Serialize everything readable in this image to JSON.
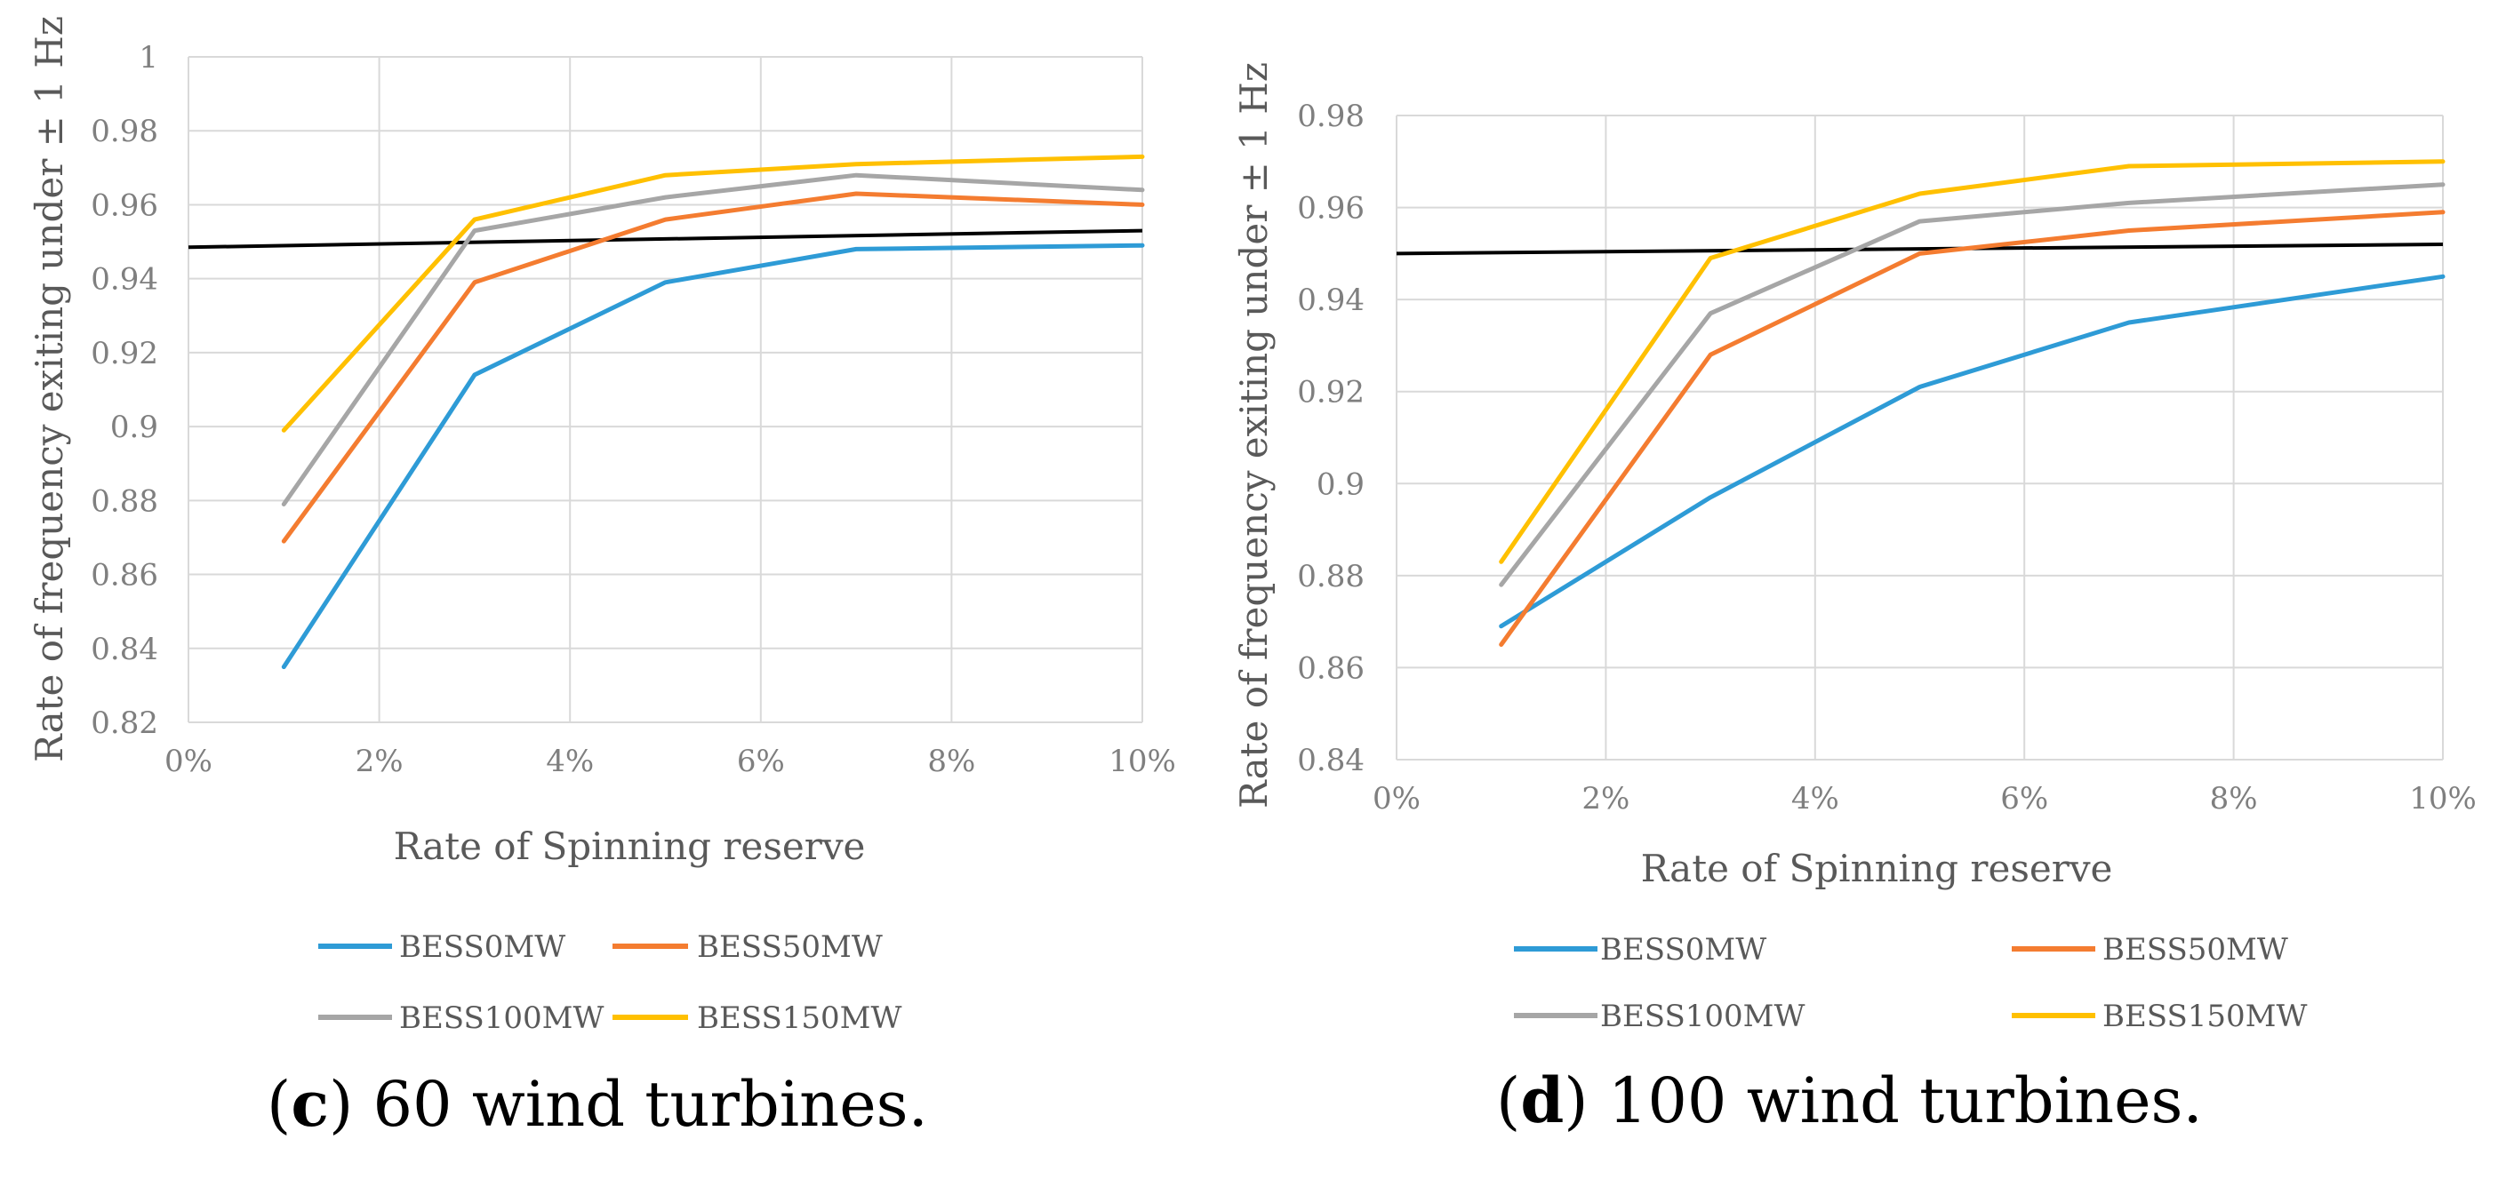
{
  "chart_data": [
    {
      "type": "line",
      "panel_id": "c",
      "caption": {
        "open": "(",
        "letter": "c",
        "close": ")",
        "text": " 60 wind turbines."
      },
      "title": "",
      "xlabel": "Rate of Spinning  reserve",
      "ylabel": "Rate of frequency  exiting under ± 1 Hz",
      "xlim": [
        0,
        10
      ],
      "ylim": [
        0.82,
        1.0
      ],
      "x_ticks": [
        0,
        2,
        4,
        6,
        8,
        10
      ],
      "x_tick_labels": [
        "0%",
        "2%",
        "4%",
        "6%",
        "8%",
        "10%"
      ],
      "y_ticks": [
        0.82,
        0.84,
        0.86,
        0.88,
        0.9,
        0.92,
        0.94,
        0.96,
        0.98,
        1.0
      ],
      "y_tick_labels": [
        "0.82",
        "0.84",
        "0.86",
        "0.88",
        "0.9",
        "0.92",
        "0.94",
        "0.96",
        "0.98",
        "1"
      ],
      "grid": true,
      "legend_position": "bottom",
      "x": [
        1,
        3,
        5,
        7,
        10
      ],
      "series": [
        {
          "name": "BESS0MW",
          "color": "#2e9bd6",
          "values": [
            0.835,
            0.914,
            0.939,
            0.948,
            0.949
          ]
        },
        {
          "name": "BESS50MW",
          "color": "#f47c30",
          "values": [
            0.869,
            0.939,
            0.956,
            0.963,
            0.96
          ]
        },
        {
          "name": "BESS100MW",
          "color": "#a6a6a6",
          "values": [
            0.879,
            0.953,
            0.962,
            0.968,
            0.964
          ]
        },
        {
          "name": "BESS150MW",
          "color": "#ffc000",
          "values": [
            0.899,
            0.956,
            0.968,
            0.971,
            0.973
          ]
        }
      ],
      "reference_line": {
        "color": "#000000",
        "x": [
          0,
          10
        ],
        "values": [
          0.9485,
          0.953
        ]
      }
    },
    {
      "type": "line",
      "panel_id": "d",
      "caption": {
        "open": "(",
        "letter": "d",
        "close": ")",
        "text": " 100 wind turbines."
      },
      "title": "",
      "xlabel": "Rate of Spinning  reserve",
      "ylabel": "Rate of frequency  exiting under ± 1 Hz",
      "xlim": [
        0,
        10
      ],
      "ylim": [
        0.84,
        0.98
      ],
      "x_ticks": [
        0,
        2,
        4,
        6,
        8,
        10
      ],
      "x_tick_labels": [
        "0%",
        "2%",
        "4%",
        "6%",
        "8%",
        "10%"
      ],
      "y_ticks": [
        0.84,
        0.86,
        0.88,
        0.9,
        0.92,
        0.94,
        0.96,
        0.98
      ],
      "y_tick_labels": [
        "0.84",
        "0.86",
        "0.88",
        "0.9",
        "0.92",
        "0.94",
        "0.96",
        "0.98"
      ],
      "grid": true,
      "legend_position": "bottom",
      "x": [
        1,
        3,
        5,
        7,
        10
      ],
      "series": [
        {
          "name": "BESS0MW",
          "color": "#2e9bd6",
          "values": [
            0.869,
            0.897,
            0.921,
            0.935,
            0.945
          ]
        },
        {
          "name": "BESS50MW",
          "color": "#f47c30",
          "values": [
            0.865,
            0.928,
            0.95,
            0.955,
            0.959
          ]
        },
        {
          "name": "BESS100MW",
          "color": "#a6a6a6",
          "values": [
            0.878,
            0.937,
            0.957,
            0.961,
            0.965
          ]
        },
        {
          "name": "BESS150MW",
          "color": "#ffc000",
          "values": [
            0.883,
            0.949,
            0.963,
            0.969,
            0.97
          ]
        }
      ],
      "reference_line": {
        "color": "#000000",
        "x": [
          0,
          10
        ],
        "values": [
          0.95,
          0.952
        ]
      }
    }
  ]
}
